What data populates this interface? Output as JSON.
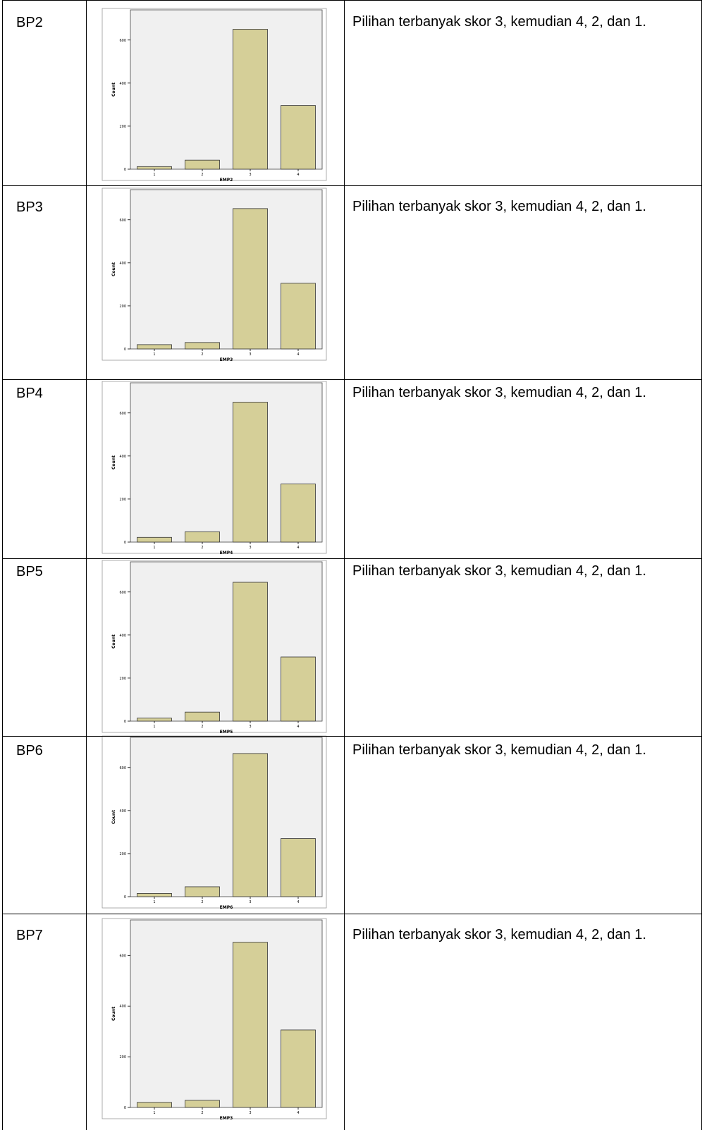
{
  "rows": [
    {
      "label": "BP2",
      "description": "Pilihan terbanyak skor 3, kemudian 4, 2, dan 1.",
      "chart_data": {
        "type": "bar",
        "categories": [
          "1",
          "2",
          "3",
          "4"
        ],
        "values": [
          12,
          42,
          650,
          296
        ],
        "ylabel": "Count",
        "xlabel": "EMP2",
        "ylim": [
          0,
          740
        ],
        "yticks": [
          0,
          200,
          400,
          600
        ],
        "bar_color": "#d5cf98",
        "plot_bg": "#f0f0f0"
      }
    },
    {
      "label": "BP3",
      "description": "Pilihan terbanyak skor 3, kemudian 4, 2, dan 1.",
      "chart_data": {
        "type": "bar",
        "categories": [
          "1",
          "2",
          "3",
          "4"
        ],
        "values": [
          20,
          30,
          652,
          305
        ],
        "ylabel": "Count",
        "xlabel": "EMP3",
        "ylim": [
          0,
          740
        ],
        "yticks": [
          0,
          200,
          400,
          600
        ],
        "bar_color": "#d5cf98",
        "plot_bg": "#f0f0f0"
      }
    },
    {
      "label": "BP4",
      "description": "Pilihan terbanyak skor 3, kemudian 4, 2, dan 1.",
      "chart_data": {
        "type": "bar",
        "categories": [
          "1",
          "2",
          "3",
          "4"
        ],
        "values": [
          22,
          48,
          650,
          270
        ],
        "ylabel": "Count",
        "xlabel": "EMP4",
        "ylim": [
          0,
          740
        ],
        "yticks": [
          0,
          200,
          400,
          600
        ],
        "bar_color": "#d5cf98",
        "plot_bg": "#f0f0f0"
      }
    },
    {
      "label": "BP5",
      "description": "Pilihan terbanyak skor 3, kemudian 4, 2, dan 1.",
      "chart_data": {
        "type": "bar",
        "categories": [
          "1",
          "2",
          "3",
          "4"
        ],
        "values": [
          14,
          42,
          645,
          298
        ],
        "ylabel": "Count",
        "xlabel": "EMP5",
        "ylim": [
          0,
          740
        ],
        "yticks": [
          0,
          200,
          400,
          600
        ],
        "bar_color": "#d5cf98",
        "plot_bg": "#f0f0f0"
      }
    },
    {
      "label": "BP6",
      "description": "Pilihan terbanyak skor 3, kemudian 4, 2, dan 1.",
      "chart_data": {
        "type": "bar",
        "categories": [
          "1",
          "2",
          "3",
          "4"
        ],
        "values": [
          15,
          46,
          665,
          270
        ],
        "ylabel": "Count",
        "xlabel": "EMP6",
        "ylim": [
          0,
          740
        ],
        "yticks": [
          0,
          200,
          400,
          600
        ],
        "bar_color": "#d5cf98",
        "plot_bg": "#f0f0f0"
      }
    },
    {
      "label": "BP7",
      "description": "Pilihan terbanyak skor 3, kemudian 4, 2, dan 1.",
      "chart_data": {
        "type": "bar",
        "categories": [
          "1",
          "2",
          "3",
          "4"
        ],
        "values": [
          20,
          28,
          652,
          306
        ],
        "ylabel": "Count",
        "xlabel": "EMP3",
        "ylim": [
          0,
          740
        ],
        "yticks": [
          0,
          200,
          400,
          600
        ],
        "bar_color": "#d5cf98",
        "plot_bg": "#f0f0f0"
      }
    }
  ]
}
